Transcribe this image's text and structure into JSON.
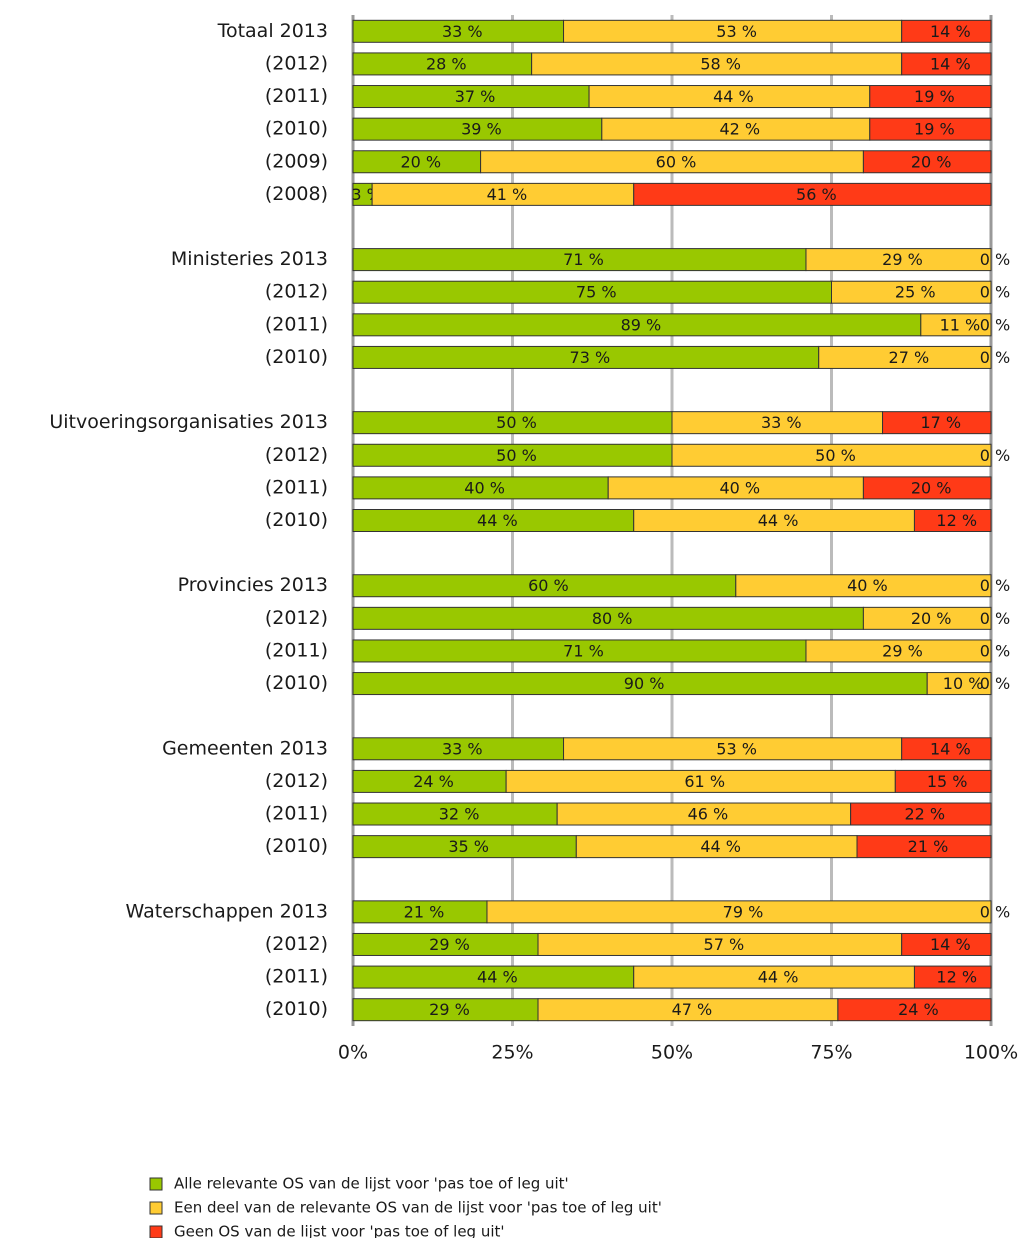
{
  "chart_data": {
    "type": "stacked-barh",
    "categories": [
      "Totaal 2013",
      "(2012)",
      "(2011)",
      "(2010)",
      "(2009)",
      "(2008)",
      null,
      "Ministeries 2013",
      "(2012)",
      "(2011)",
      "(2010)",
      null,
      "Uitvoeringsorganisaties 2013",
      "(2012)",
      "(2011)",
      "(2010)",
      null,
      "Provincies 2013",
      "(2012)",
      "(2011)",
      "(2010)",
      null,
      "Gemeenten 2013",
      "(2012)",
      "(2011)",
      "(2010)",
      null,
      "Waterschappen 2013",
      "(2012)",
      "(2011)",
      "(2010)"
    ],
    "series": [
      {
        "name": "Alle relevante OS van de lijst voor 'pas toe of leg uit'",
        "color": "#99c800",
        "values": [
          33,
          28,
          37,
          39,
          20,
          3,
          null,
          71,
          75,
          89,
          73,
          null,
          50,
          50,
          40,
          44,
          null,
          60,
          80,
          71,
          90,
          null,
          33,
          24,
          32,
          35,
          null,
          21,
          29,
          44,
          29
        ],
        "value_labels": [
          "33 %",
          "28 %",
          "37 %",
          "39 %",
          "20 %",
          "3 %",
          null,
          "71 %",
          "75 %",
          "89 %",
          "73 %",
          null,
          "50 %",
          "50 %",
          "40 %",
          "44 %",
          null,
          "60 %",
          "80 %",
          "71 %",
          "90 %",
          null,
          "33 %",
          "24 %",
          "32 %",
          "35 %",
          null,
          "21 %",
          "29 %",
          "44 %",
          "29 %"
        ]
      },
      {
        "name": "Een deel van de relevante OS van de lijst voor 'pas toe of leg uit'",
        "color": "#ffcc33",
        "values": [
          53,
          58,
          44,
          42,
          60,
          41,
          null,
          29,
          25,
          11,
          27,
          null,
          33,
          50,
          40,
          44,
          null,
          40,
          20,
          29,
          10,
          null,
          53,
          61,
          46,
          44,
          null,
          79,
          57,
          44,
          47
        ],
        "value_labels": [
          "53 %",
          "58 %",
          "44 %",
          "42 %",
          "60 %",
          "41 %",
          null,
          "29 %",
          "25 %",
          "11 %",
          "27 %",
          null,
          "33 %",
          "50 %",
          "40 %",
          "44 %",
          null,
          "40 %",
          "20 %",
          "29 %",
          "10 %",
          null,
          "53 %",
          "61 %",
          "46 %",
          "44 %",
          null,
          "79 %",
          "57 %",
          "44 %",
          "47 %"
        ]
      },
      {
        "name": "Geen OS van de lijst voor 'pas toe of leg uit'",
        "color": "#ff3a17",
        "values": [
          14,
          14,
          19,
          19,
          20,
          56,
          null,
          0,
          0,
          0,
          0,
          null,
          17,
          0,
          20,
          12,
          null,
          0,
          0,
          0,
          0,
          null,
          14,
          15,
          22,
          21,
          null,
          0,
          14,
          12,
          24
        ],
        "value_labels": [
          "14 %",
          "14 %",
          "19 %",
          "19 %",
          "20 %",
          "56 %",
          null,
          "0 %",
          "0 %",
          "0 %",
          "0 %",
          null,
          "17 %",
          "0 %",
          "20 %",
          "12 %",
          null,
          "0 %",
          "0 %",
          "0 %",
          "0 %",
          null,
          "14 %",
          "15 %",
          "22 %",
          "21 %",
          null,
          "0 %",
          "14 %",
          "12 %",
          "24 %"
        ]
      }
    ],
    "xlim": [
      0,
      100
    ],
    "xticks": [
      {
        "value": 0,
        "label": "0%"
      },
      {
        "value": 25,
        "label": "25%"
      },
      {
        "value": 50,
        "label": "50%"
      },
      {
        "value": 75,
        "label": "75%"
      },
      {
        "value": 100,
        "label": "100%"
      }
    ],
    "grid": true,
    "legend": "bottom"
  }
}
